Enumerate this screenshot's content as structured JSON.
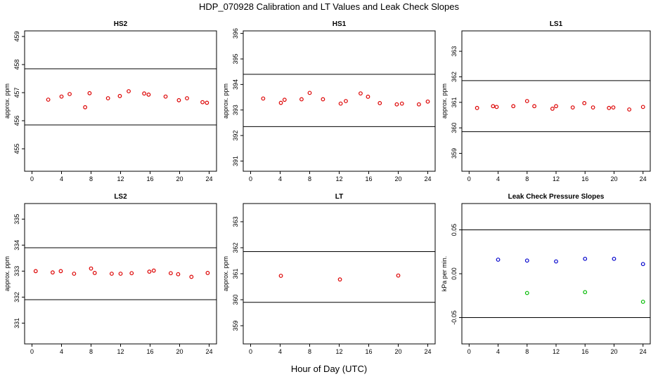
{
  "figure": {
    "title": "HDP_070928  Calibration and LT Values and Leak Check Slopes",
    "xlabel": "Hour of Day (UTC)"
  },
  "colors": {
    "cal_points": "#dd0000",
    "blue_points": "#0000cc",
    "green_points": "#00bb00",
    "ref_lines": "#000000"
  },
  "chart_data": [
    {
      "type": "scatter",
      "title": "HS2",
      "ylabel": "approx. ppm",
      "xlim": [
        -1,
        25
      ],
      "ylim": [
        454.2,
        459.2
      ],
      "xticks": [
        0,
        4,
        8,
        12,
        16,
        20,
        24
      ],
      "yticks": [
        455,
        456,
        457,
        458,
        459
      ],
      "hlines": [
        457.85,
        455.85
      ],
      "series": [
        {
          "color": "#dd0000",
          "x": [
            2.2,
            4.0,
            5.1,
            7.2,
            7.8,
            10.3,
            11.9,
            13.1,
            15.2,
            15.8,
            18.1,
            19.9,
            21.0,
            23.1,
            23.7
          ],
          "y": [
            456.75,
            456.86,
            456.95,
            456.48,
            456.98,
            456.8,
            456.88,
            457.05,
            456.97,
            456.93,
            456.86,
            456.73,
            456.8,
            456.66,
            456.64
          ]
        }
      ]
    },
    {
      "type": "scatter",
      "title": "HS1",
      "ylabel": "approx. ppm",
      "xlim": [
        -1,
        25
      ],
      "ylim": [
        390.6,
        396.1
      ],
      "xticks": [
        0,
        4,
        8,
        12,
        16,
        20,
        24
      ],
      "yticks": [
        391,
        392,
        393,
        394,
        395,
        396
      ],
      "hlines": [
        394.4,
        392.35
      ],
      "series": [
        {
          "color": "#dd0000",
          "x": [
            1.7,
            4.1,
            4.6,
            6.9,
            8.0,
            9.8,
            12.2,
            12.9,
            14.9,
            15.9,
            17.5,
            19.8,
            20.5,
            22.8,
            24.0
          ],
          "y": [
            393.45,
            393.28,
            393.4,
            393.42,
            393.67,
            393.42,
            393.25,
            393.35,
            393.65,
            393.52,
            393.27,
            393.22,
            393.25,
            393.22,
            393.33
          ]
        }
      ]
    },
    {
      "type": "scatter",
      "title": "LS1",
      "ylabel": "approx. ppm",
      "xlim": [
        -1,
        25
      ],
      "ylim": [
        358.3,
        363.8
      ],
      "xticks": [
        0,
        4,
        8,
        12,
        16,
        20,
        24
      ],
      "yticks": [
        359,
        360,
        361,
        362,
        363
      ],
      "hlines": [
        361.85,
        359.85
      ],
      "series": [
        {
          "color": "#dd0000",
          "x": [
            1.1,
            3.3,
            3.8,
            6.1,
            8.0,
            9.0,
            11.5,
            12.0,
            14.3,
            15.9,
            17.1,
            19.3,
            19.9,
            22.1,
            24.0
          ],
          "y": [
            360.78,
            360.85,
            360.82,
            360.85,
            361.05,
            360.85,
            360.75,
            360.85,
            360.8,
            360.97,
            360.8,
            360.78,
            360.8,
            360.72,
            360.82
          ]
        }
      ]
    },
    {
      "type": "scatter",
      "title": "LS2",
      "ylabel": "approx. ppm",
      "xlim": [
        -1,
        25
      ],
      "ylim": [
        330.2,
        335.6
      ],
      "xticks": [
        0,
        4,
        8,
        12,
        16,
        20,
        24
      ],
      "yticks": [
        331,
        332,
        333,
        334,
        335
      ],
      "hlines": [
        333.9,
        331.9
      ],
      "series": [
        {
          "color": "#dd0000",
          "x": [
            0.5,
            2.8,
            3.9,
            5.7,
            8.0,
            8.5,
            10.8,
            12.0,
            13.5,
            15.9,
            16.5,
            18.8,
            19.8,
            21.6,
            23.8
          ],
          "y": [
            333.0,
            332.95,
            333.0,
            332.9,
            333.1,
            332.93,
            332.9,
            332.9,
            332.92,
            332.98,
            333.02,
            332.92,
            332.88,
            332.78,
            332.93
          ]
        }
      ]
    },
    {
      "type": "scatter",
      "title": "LT",
      "ylabel": "approx. ppm",
      "xlim": [
        -1,
        25
      ],
      "ylim": [
        358.3,
        363.7
      ],
      "xticks": [
        0,
        4,
        8,
        12,
        16,
        20,
        24
      ],
      "yticks": [
        359,
        360,
        361,
        362,
        363
      ],
      "hlines": [
        361.85,
        359.9
      ],
      "series": [
        {
          "color": "#dd0000",
          "x": [
            4.1,
            12.1,
            20.0
          ],
          "y": [
            360.92,
            360.78,
            360.93
          ]
        }
      ]
    },
    {
      "type": "scatter",
      "title": "Leak Check Pressure Slopes",
      "ylabel": "kPa per min.",
      "xlim": [
        -1,
        25
      ],
      "ylim": [
        -0.08,
        0.08
      ],
      "xticks": [
        0,
        4,
        8,
        12,
        16,
        20,
        24
      ],
      "yticks": [
        -0.05,
        0.0,
        0.05
      ],
      "ytick_labels": [
        "-0.05",
        "0.00",
        "0.05"
      ],
      "hlines": [
        0.05,
        -0.05
      ],
      "series": [
        {
          "color": "#0000cc",
          "x": [
            4.0,
            8.0,
            12.0,
            16.0,
            20.0,
            24.0
          ],
          "y": [
            0.016,
            0.015,
            0.014,
            0.017,
            0.017,
            0.011
          ]
        },
        {
          "color": "#00bb00",
          "x": [
            8.0,
            16.0,
            24.0
          ],
          "y": [
            -0.022,
            -0.021,
            -0.032
          ]
        }
      ]
    }
  ]
}
